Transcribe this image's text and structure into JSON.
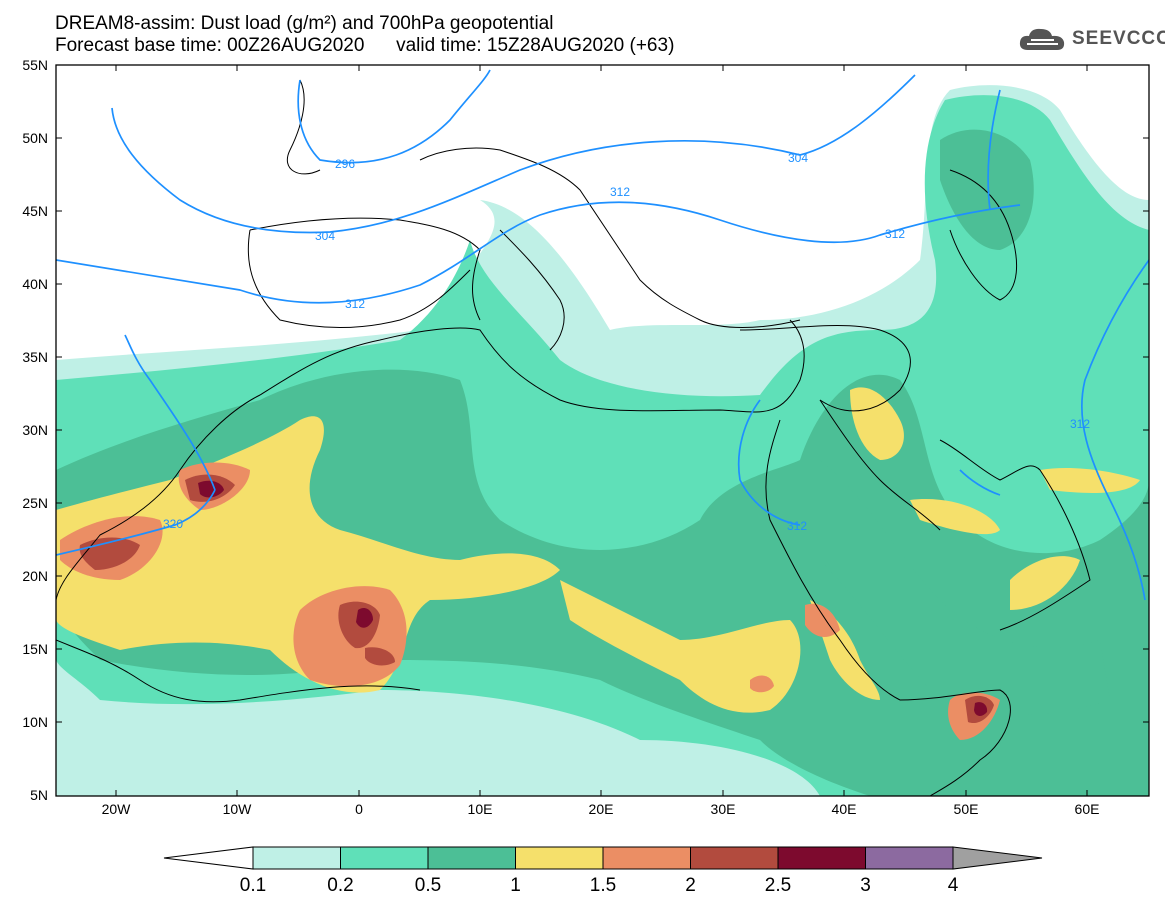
{
  "title_line1": "DREAM8-assim: Dust load (g/m²) and 700hPa geopotential",
  "title_line2": "Forecast base time: 00Z26AUG2020      valid time: 15Z28AUG2020 (+63)",
  "logo": {
    "text": "SEEVCCC",
    "icon": "cloud-icon"
  },
  "map": {
    "lat_labels": [
      "55N",
      "50N",
      "45N",
      "40N",
      "35N",
      "30N",
      "25N",
      "20N",
      "15N",
      "10N",
      "5N"
    ],
    "lon_labels": [
      "20W",
      "10W",
      "0",
      "10E",
      "20E",
      "30E",
      "40E",
      "50E",
      "60E"
    ],
    "contour_labels": [
      "296",
      "304",
      "304",
      "312",
      "312",
      "312",
      "312",
      "312",
      "320"
    ]
  },
  "colorbar": {
    "labels": [
      "0.1",
      "0.2",
      "0.5",
      "1",
      "1.5",
      "2",
      "2.5",
      "3",
      "4"
    ],
    "colors": [
      "#ffffff",
      "#bff0e6",
      "#5fe0b8",
      "#4cbf96",
      "#f5e06b",
      "#eb8e64",
      "#b24b3e",
      "#7d0a2e",
      "#8c6aa0",
      "#a0a0a0"
    ]
  }
}
